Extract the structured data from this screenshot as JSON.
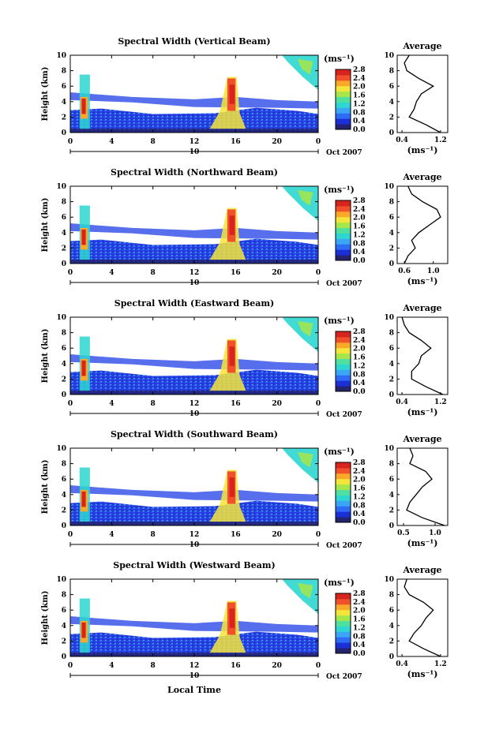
{
  "colorbar": {
    "unit_label": "(ms⁻¹)",
    "ticks": [
      "0.0",
      "0.4",
      "0.8",
      "1.2",
      "1.6",
      "2.0",
      "2.4",
      "2.8"
    ],
    "colors": [
      "#23236e",
      "#1a2fd6",
      "#2e6cf5",
      "#3aa6f5",
      "#2dd6d0",
      "#4fe0a0",
      "#a6e64a",
      "#f4e53a",
      "#f9a82a",
      "#f0502a",
      "#d8241e"
    ]
  },
  "axes": {
    "ylabel": "Height (km)",
    "xlabel": "Local Time",
    "x_ticks": [
      "0",
      "4",
      "8",
      "12",
      "16",
      "20",
      "0"
    ],
    "y_ticks": [
      "0",
      "2",
      "4",
      "6",
      "8",
      "10"
    ],
    "day_marker": "10",
    "date_label": "Oct 2007"
  },
  "profile_common": {
    "title": "Average",
    "xlabel": "(ms⁻¹)"
  },
  "panels": [
    {
      "title": "Spectral Width (Vertical Beam)",
      "profile_ticks": [
        "0.4",
        "1.2"
      ],
      "profile_range": [
        0.3,
        1.35
      ]
    },
    {
      "title": "Spectral Width (Northward Beam)",
      "profile_ticks": [
        "0.6",
        "1.0"
      ],
      "profile_range": [
        0.5,
        1.2
      ]
    },
    {
      "title": "Spectral Width (Eastward Beam)",
      "profile_ticks": [
        "0.4",
        "1.2"
      ],
      "profile_range": [
        0.3,
        1.35
      ]
    },
    {
      "title": "Spectral Width (Southward Beam)",
      "profile_ticks": [
        "0.5",
        "1.0"
      ],
      "profile_range": [
        0.4,
        1.2
      ]
    },
    {
      "title": "Spectral Width (Westward Beam)",
      "profile_ticks": [
        "0.4",
        "1.2"
      ],
      "profile_range": [
        0.3,
        1.35
      ]
    }
  ],
  "chart_data": {
    "type": "heatmap",
    "x_unit": "Local Time (h)",
    "xlim": [
      0,
      24
    ],
    "y_unit": "Height (km)",
    "ylim": [
      0,
      10
    ],
    "colorbar_range": [
      0.0,
      2.8
    ],
    "profiles": [
      {
        "panel": "Vertical Beam",
        "height_km": [
          0,
          1,
          2,
          3,
          4,
          5,
          6,
          7,
          8,
          9,
          10
        ],
        "avg_width": [
          1.2,
          0.9,
          0.55,
          0.65,
          0.7,
          0.8,
          1.05,
          0.75,
          0.5,
          0.45,
          0.55
        ]
      },
      {
        "panel": "Northward Beam",
        "height_km": [
          0,
          1,
          2,
          3,
          4,
          5,
          6,
          7,
          8,
          9,
          10
        ],
        "avg_width": [
          0.6,
          0.65,
          0.75,
          0.7,
          0.8,
          0.95,
          1.1,
          1.05,
          0.85,
          0.7,
          0.65
        ]
      },
      {
        "panel": "Eastward Beam",
        "height_km": [
          0,
          1,
          2,
          3,
          4,
          5,
          6,
          7,
          8,
          9,
          10
        ],
        "avg_width": [
          1.25,
          0.9,
          0.6,
          0.6,
          0.75,
          0.8,
          1.0,
          0.8,
          0.55,
          0.45,
          0.4
        ]
      },
      {
        "panel": "Southward Beam",
        "height_km": [
          0,
          1,
          2,
          3,
          4,
          5,
          6,
          7,
          8,
          9,
          10
        ],
        "avg_width": [
          1.15,
          0.8,
          0.55,
          0.6,
          0.7,
          0.8,
          0.95,
          0.85,
          0.6,
          0.65,
          0.6
        ]
      },
      {
        "panel": "Westward Beam",
        "height_km": [
          0,
          1,
          2,
          3,
          4,
          5,
          6,
          7,
          8,
          9,
          10
        ],
        "avg_width": [
          1.2,
          0.85,
          0.55,
          0.65,
          0.8,
          0.9,
          1.05,
          0.85,
          0.55,
          0.45,
          0.5
        ]
      }
    ]
  }
}
